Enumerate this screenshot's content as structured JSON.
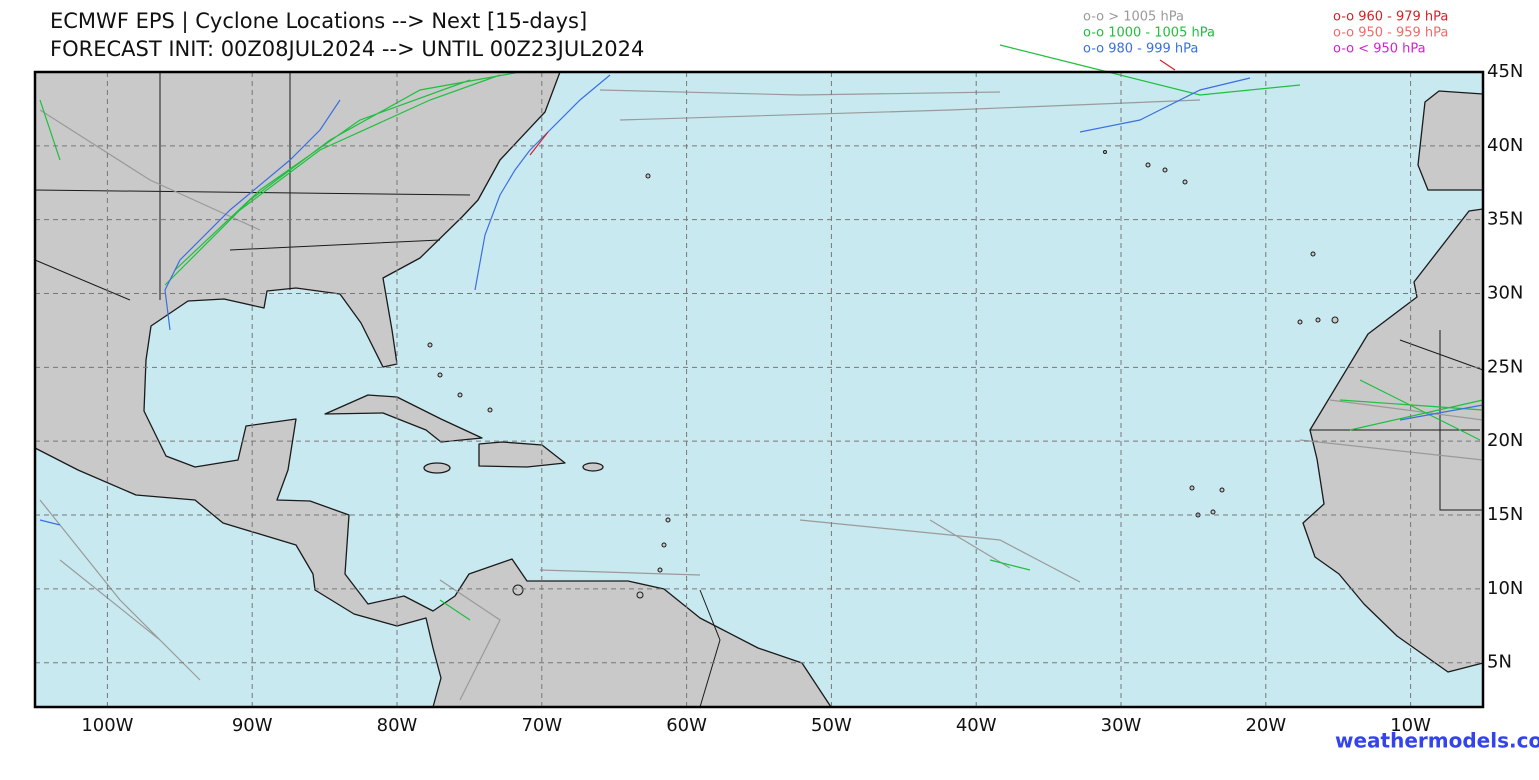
{
  "header": {
    "title": "ECMWF EPS | Cyclone Locations --> Next [15-days]",
    "subtitle": "FORECAST INIT: 00Z08JUL2024 --> UNTIL 00Z23JUL2024"
  },
  "legend": [
    {
      "label": "o-o > 1005 hPa",
      "color": "#9a9a9a"
    },
    {
      "label": "o-o 1000 - 1005 hPa",
      "color": "#1fbf3f"
    },
    {
      "label": "o-o 980 - 999 hPa",
      "color": "#3a6fe0"
    },
    {
      "label": "o-o 960 - 979 hPa",
      "color": "#d81f26"
    },
    {
      "label": "o-o 950 - 959 hPa",
      "color": "#f06a6a"
    },
    {
      "label": "o-o < 950 hPa",
      "color": "#d61ed6"
    }
  ],
  "map": {
    "lon_range": [
      -105,
      -5
    ],
    "lat_range": [
      2,
      45
    ],
    "lon_ticks": [
      {
        "value": -100,
        "label": "100W"
      },
      {
        "value": -90,
        "label": "90W"
      },
      {
        "value": -80,
        "label": "80W"
      },
      {
        "value": -70,
        "label": "70W"
      },
      {
        "value": -60,
        "label": "60W"
      },
      {
        "value": -50,
        "label": "50W"
      },
      {
        "value": -40,
        "label": "40W"
      },
      {
        "value": -30,
        "label": "30W"
      },
      {
        "value": -20,
        "label": "20W"
      },
      {
        "value": -10,
        "label": "10W"
      }
    ],
    "lat_ticks": [
      {
        "value": 45,
        "label": "45N"
      },
      {
        "value": 40,
        "label": "40N"
      },
      {
        "value": 35,
        "label": "35N"
      },
      {
        "value": 30,
        "label": "30N"
      },
      {
        "value": 25,
        "label": "25N"
      },
      {
        "value": 20,
        "label": "20N"
      },
      {
        "value": 15,
        "label": "15N"
      },
      {
        "value": 10,
        "label": "10N"
      },
      {
        "value": 5,
        "label": "5N"
      }
    ]
  },
  "watermark": "weathermodels.com"
}
